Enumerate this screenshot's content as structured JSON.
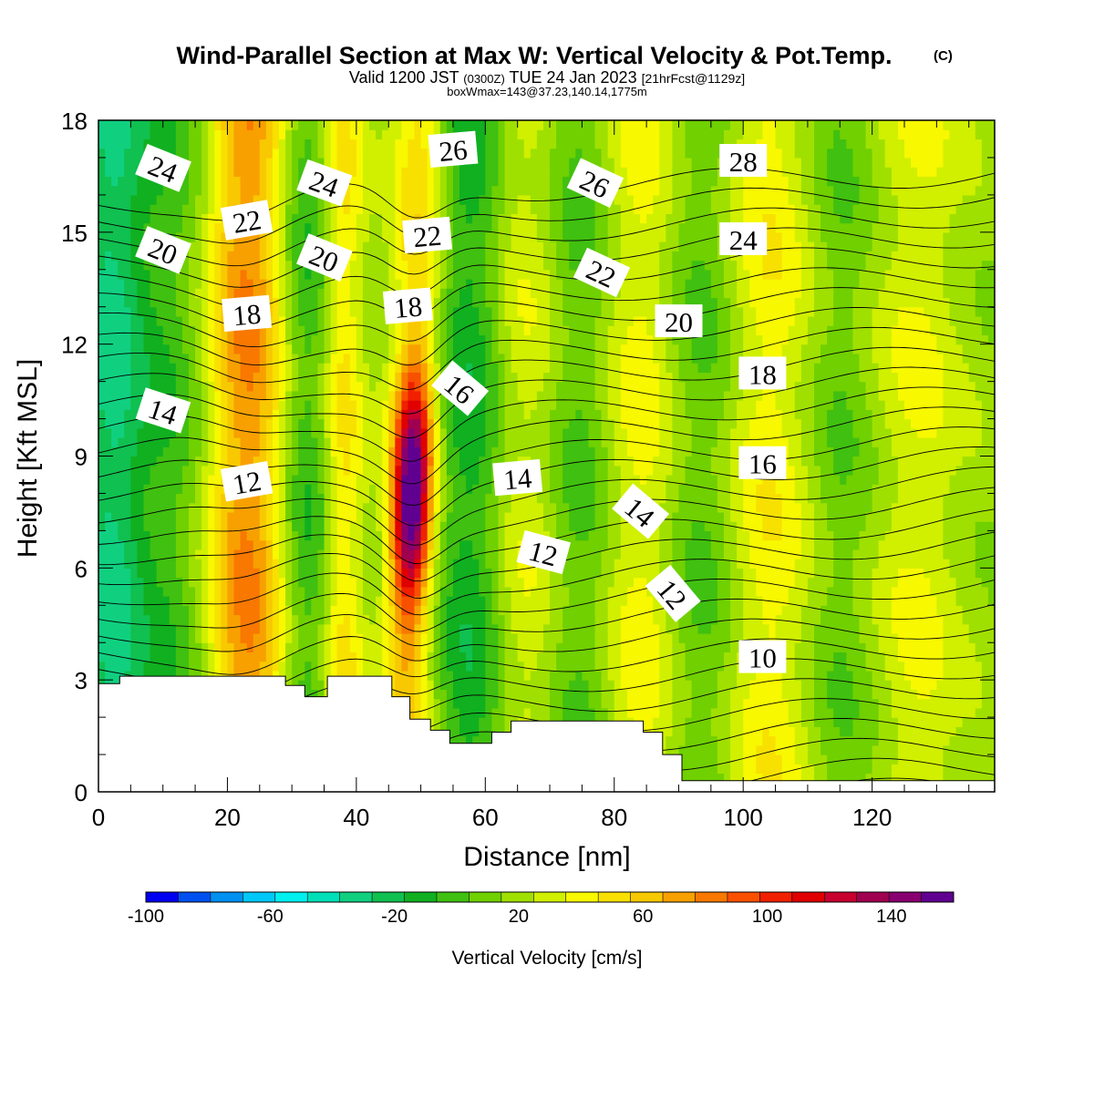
{
  "header": {
    "title": "Wind-Parallel Section at Max W: Vertical Velocity & Pot.Temp.",
    "copyright": "(C)",
    "valid_a": "Valid 1200 JST",
    "valid_b": "(0300Z)",
    "valid_c": "TUE 24 Jan 2023",
    "valid_d": "[21hrFcst@1129z]",
    "boxinfo": "boxWmax=143@37.23,140.14,1775m"
  },
  "chart_data": {
    "type": "heatmap",
    "xlabel": "Distance [nm]",
    "ylabel": "Height [Kft MSL]",
    "xlim": [
      0,
      139
    ],
    "ylim": [
      0,
      18
    ],
    "x_ticks": [
      0,
      20,
      40,
      60,
      80,
      100,
      120
    ],
    "y_ticks": [
      0,
      3,
      6,
      9,
      12,
      15,
      18
    ],
    "colorbar": {
      "label": "Vertical Velocity [cm/s]",
      "min": -100,
      "max": 160,
      "step": 10,
      "tick_values": [
        -100,
        -60,
        -20,
        20,
        60,
        100,
        140
      ],
      "colors": [
        "#0000f0",
        "#0050f0",
        "#0090f0",
        "#00c8f8",
        "#00f0f0",
        "#00e0b8",
        "#10d080",
        "#10c050",
        "#10b020",
        "#40c010",
        "#70d000",
        "#a0e000",
        "#d0f000",
        "#f8f800",
        "#f8e000",
        "#f8c800",
        "#f8a000",
        "#f87800",
        "#f85000",
        "#f02000",
        "#e00000",
        "#c80030",
        "#a00050",
        "#880070",
        "#600090"
      ]
    },
    "field_bands": [
      {
        "x": 2,
        "w": 4,
        "amp": -45
      },
      {
        "x": 12,
        "w": 4,
        "amp": -18
      },
      {
        "x": 23,
        "w": 4.5,
        "amp": 58
      },
      {
        "x": 32,
        "w": 3,
        "amp": -25
      },
      {
        "x": 38,
        "w": 2.2,
        "amp": 30
      },
      {
        "x": 48.6,
        "w": 2.3,
        "amp": 148
      },
      {
        "x": 58,
        "w": 4,
        "amp": -32
      },
      {
        "x": 66,
        "w": 5,
        "amp": 20
      },
      {
        "x": 74,
        "w": 4,
        "amp": -18
      },
      {
        "x": 84,
        "w": 4,
        "amp": 22
      },
      {
        "x": 94,
        "w": 4,
        "amp": -15
      },
      {
        "x": 104,
        "w": 5,
        "amp": 25
      },
      {
        "x": 115,
        "w": 4,
        "amp": -12
      },
      {
        "x": 127,
        "w": 5,
        "amp": 18
      }
    ],
    "theta_contours": {
      "levels_min": 2,
      "levels_max": 32,
      "step": 1,
      "labels": [
        {
          "text": "24",
          "x": 10,
          "y": 16.7,
          "angle": 22
        },
        {
          "text": "22",
          "x": 23,
          "y": 15.3,
          "angle": -10
        },
        {
          "text": "24",
          "x": 35,
          "y": 16.3,
          "angle": 20
        },
        {
          "text": "26",
          "x": 55,
          "y": 17.2,
          "angle": -5
        },
        {
          "text": "26",
          "x": 77,
          "y": 16.3,
          "angle": 25
        },
        {
          "text": "28",
          "x": 100,
          "y": 16.9,
          "angle": 0
        },
        {
          "text": "20",
          "x": 10,
          "y": 14.5,
          "angle": 22
        },
        {
          "text": "20",
          "x": 35,
          "y": 14.3,
          "angle": 22
        },
        {
          "text": "22",
          "x": 51,
          "y": 14.9,
          "angle": -5
        },
        {
          "text": "22",
          "x": 78,
          "y": 13.9,
          "angle": 25
        },
        {
          "text": "24",
          "x": 100,
          "y": 14.8,
          "angle": 0
        },
        {
          "text": "18",
          "x": 23,
          "y": 12.8,
          "angle": -5
        },
        {
          "text": "18",
          "x": 48,
          "y": 13.0,
          "angle": -5
        },
        {
          "text": "20",
          "x": 90,
          "y": 12.6,
          "angle": 0
        },
        {
          "text": "16",
          "x": 56,
          "y": 10.8,
          "angle": 40
        },
        {
          "text": "18",
          "x": 103,
          "y": 11.2,
          "angle": 0
        },
        {
          "text": "14",
          "x": 10,
          "y": 10.2,
          "angle": 18
        },
        {
          "text": "14",
          "x": 65,
          "y": 8.4,
          "angle": -5
        },
        {
          "text": "16",
          "x": 103,
          "y": 8.8,
          "angle": 0
        },
        {
          "text": "12",
          "x": 23,
          "y": 8.3,
          "angle": -10
        },
        {
          "text": "14",
          "x": 84,
          "y": 7.5,
          "angle": 40
        },
        {
          "text": "12",
          "x": 69,
          "y": 6.4,
          "angle": 15
        },
        {
          "text": "12",
          "x": 89,
          "y": 5.3,
          "angle": 50
        },
        {
          "text": "10",
          "x": 103,
          "y": 3.6,
          "angle": 0
        }
      ]
    },
    "terrain_kft": [
      [
        0,
        2.9
      ],
      [
        3.3,
        2.9
      ],
      [
        3.3,
        3.1
      ],
      [
        29,
        3.1
      ],
      [
        29,
        2.85
      ],
      [
        32,
        2.85
      ],
      [
        32,
        2.55
      ],
      [
        35.5,
        2.55
      ],
      [
        35.5,
        3.1
      ],
      [
        45.5,
        3.1
      ],
      [
        45.5,
        2.55
      ],
      [
        48.3,
        2.55
      ],
      [
        48.3,
        1.95
      ],
      [
        51.5,
        1.95
      ],
      [
        51.5,
        1.65
      ],
      [
        54.5,
        1.65
      ],
      [
        54.5,
        1.3
      ],
      [
        61,
        1.3
      ],
      [
        61,
        1.6
      ],
      [
        64,
        1.6
      ],
      [
        64,
        1.9
      ],
      [
        84.5,
        1.9
      ],
      [
        84.5,
        1.6
      ],
      [
        87.5,
        1.6
      ],
      [
        87.5,
        1.0
      ],
      [
        90.5,
        1.0
      ],
      [
        90.5,
        0.3
      ],
      [
        139,
        0.3
      ]
    ]
  }
}
